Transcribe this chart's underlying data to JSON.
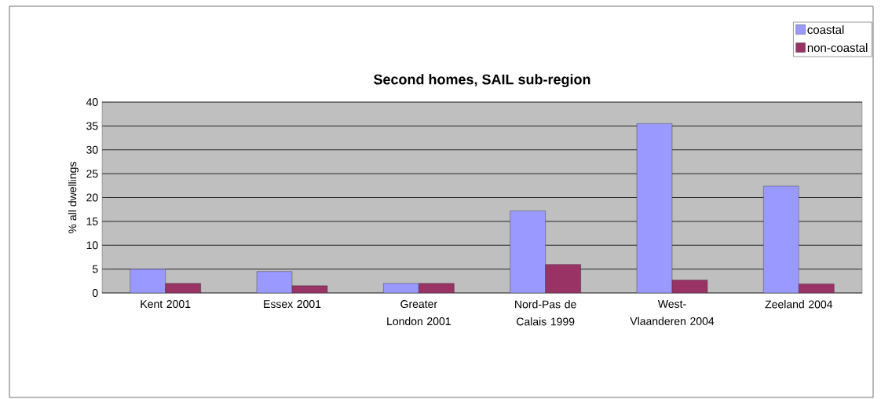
{
  "chart_data": {
    "type": "bar",
    "title": "Second homes, SAIL sub-region",
    "ylabel": "% all dwellings",
    "categories": [
      "Kent 2001",
      "Essex 2001",
      "Greater London 2001",
      "Nord-Pas de Calais 1999",
      "West-Vlaanderen 2004",
      "Zeeland 2004"
    ],
    "series": [
      {
        "name": "coastal",
        "color": "#9999ff",
        "values": [
          5,
          4.5,
          2,
          17.2,
          35.5,
          22.4
        ]
      },
      {
        "name": "non-coastal",
        "color": "#993366",
        "values": [
          2,
          1.5,
          2,
          6,
          2.7,
          1.9
        ]
      }
    ],
    "ylim": [
      0,
      40
    ],
    "yticks": [
      0,
      5,
      10,
      15,
      20,
      25,
      30,
      35,
      40
    ],
    "grid": "y",
    "legend": "top right"
  }
}
